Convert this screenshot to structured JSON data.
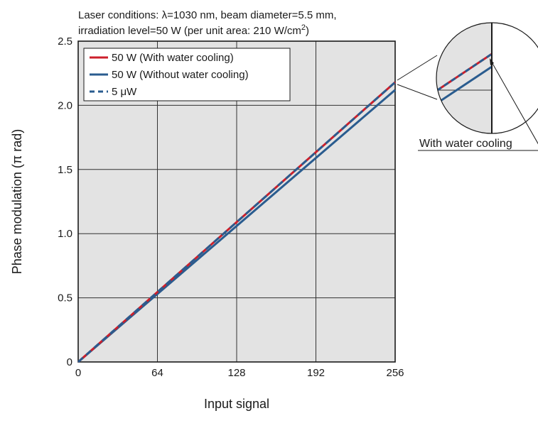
{
  "chart_data": {
    "type": "line",
    "title_lines": [
      "Laser conditions: λ=1030 nm, beam diameter=5.5 mm,",
      "irradiation level=50 W (per unit area: 210 W/cm",
      "2",
      ")"
    ],
    "xlabel": "Input signal",
    "ylabel": "Phase modulation (π rad)",
    "xlim": [
      0,
      256
    ],
    "ylim": [
      0,
      2.5
    ],
    "x_ticks": [
      "0",
      "64",
      "128",
      "192",
      "256"
    ],
    "y_ticks": [
      "0",
      "0.5",
      "1.0",
      "1.5",
      "2.0",
      "2.5"
    ],
    "grid": true,
    "legend_position": "top-left",
    "series": [
      {
        "name": "50 W (With water cooling)",
        "x": [
          0,
          256
        ],
        "y": [
          0,
          2.18
        ],
        "color": "#cc1f2b",
        "dash": "solid"
      },
      {
        "name": "50 W (Without water cooling)",
        "x": [
          0,
          256
        ],
        "y": [
          0,
          2.12
        ],
        "color": "#2a5c8f",
        "dash": "solid"
      },
      {
        "name": "5 μW",
        "x": [
          0,
          256
        ],
        "y": [
          0,
          2.18
        ],
        "color": "#2a5c8f",
        "dash": "dashed"
      }
    ],
    "annotation": "With water cooling"
  },
  "colors": {
    "plot_background": "#e3e3e3",
    "grid": "#333333",
    "axis": "#1a1a1a"
  }
}
